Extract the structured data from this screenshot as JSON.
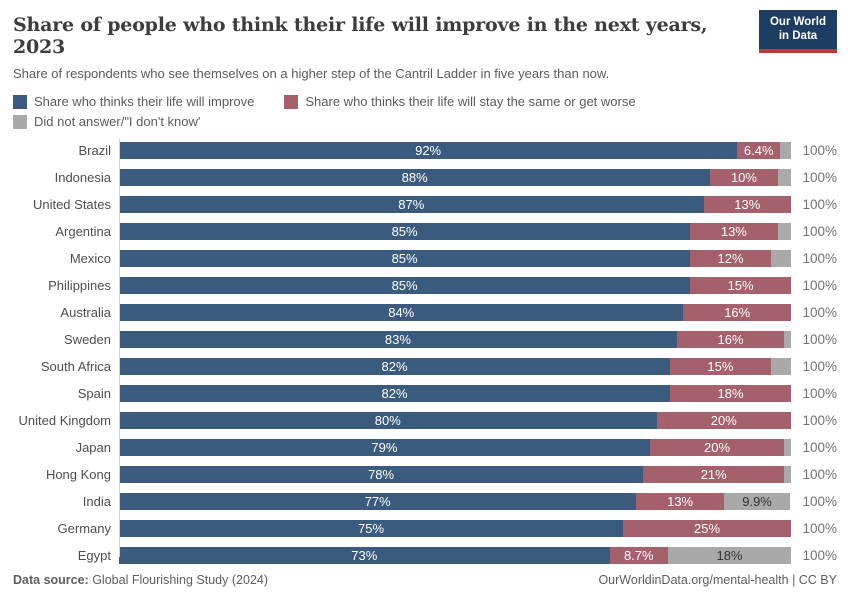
{
  "header": {
    "title": "Share of people who think their life will improve in the next years, 2023",
    "logo": {
      "line1": "Our World",
      "line2": "in Data"
    }
  },
  "subtitle": "Share of respondents who see themselves on a higher step of the Cantril Ladder in five years than now.",
  "legend": [
    {
      "key": "improve",
      "label": "Share who thinks their life will improve",
      "color": "#3b5b7e"
    },
    {
      "key": "worse",
      "label": "Share who thinks their life will stay the same or get worse",
      "color": "#a4606b"
    },
    {
      "key": "no_answer",
      "label": "Did not answer/\"I don't know'",
      "color": "#a9a9a9"
    }
  ],
  "chart_data": {
    "type": "bar",
    "stacked": true,
    "orientation": "horizontal",
    "unit": "%",
    "xlim": [
      0,
      100
    ],
    "total_label": "100%",
    "series": [
      "Share who thinks their life will improve",
      "Share who thinks their life will stay the same or get worse",
      "Did not answer/\"I don't know'"
    ],
    "rows": [
      {
        "country": "Brazil",
        "improve": 92,
        "improve_label": "92%",
        "worse": 6.4,
        "worse_label": "6.4%",
        "no_answer": 1.6,
        "no_answer_label": ""
      },
      {
        "country": "Indonesia",
        "improve": 88,
        "improve_label": "88%",
        "worse": 10,
        "worse_label": "10%",
        "no_answer": 2,
        "no_answer_label": ""
      },
      {
        "country": "United States",
        "improve": 87,
        "improve_label": "87%",
        "worse": 13,
        "worse_label": "13%",
        "no_answer": 0,
        "no_answer_label": ""
      },
      {
        "country": "Argentina",
        "improve": 85,
        "improve_label": "85%",
        "worse": 13,
        "worse_label": "13%",
        "no_answer": 2,
        "no_answer_label": ""
      },
      {
        "country": "Mexico",
        "improve": 85,
        "improve_label": "85%",
        "worse": 12,
        "worse_label": "12%",
        "no_answer": 3,
        "no_answer_label": ""
      },
      {
        "country": "Philippines",
        "improve": 85,
        "improve_label": "85%",
        "worse": 15,
        "worse_label": "15%",
        "no_answer": 0,
        "no_answer_label": ""
      },
      {
        "country": "Australia",
        "improve": 84,
        "improve_label": "84%",
        "worse": 16,
        "worse_label": "16%",
        "no_answer": 0,
        "no_answer_label": ""
      },
      {
        "country": "Sweden",
        "improve": 83,
        "improve_label": "83%",
        "worse": 16,
        "worse_label": "16%",
        "no_answer": 1,
        "no_answer_label": ""
      },
      {
        "country": "South Africa",
        "improve": 82,
        "improve_label": "82%",
        "worse": 15,
        "worse_label": "15%",
        "no_answer": 3,
        "no_answer_label": ""
      },
      {
        "country": "Spain",
        "improve": 82,
        "improve_label": "82%",
        "worse": 18,
        "worse_label": "18%",
        "no_answer": 0,
        "no_answer_label": ""
      },
      {
        "country": "United Kingdom",
        "improve": 80,
        "improve_label": "80%",
        "worse": 20,
        "worse_label": "20%",
        "no_answer": 0.5,
        "no_answer_label": ""
      },
      {
        "country": "Japan",
        "improve": 79,
        "improve_label": "79%",
        "worse": 20,
        "worse_label": "20%",
        "no_answer": 1,
        "no_answer_label": ""
      },
      {
        "country": "Hong Kong",
        "improve": 78,
        "improve_label": "78%",
        "worse": 21,
        "worse_label": "21%",
        "no_answer": 1,
        "no_answer_label": ""
      },
      {
        "country": "India",
        "improve": 77,
        "improve_label": "77%",
        "worse": 13,
        "worse_label": "13%",
        "no_answer": 9.9,
        "no_answer_label": "9.9%"
      },
      {
        "country": "Germany",
        "improve": 75,
        "improve_label": "75%",
        "worse": 25,
        "worse_label": "25%",
        "no_answer": 0,
        "no_answer_label": ""
      },
      {
        "country": "Egypt",
        "improve": 73,
        "improve_label": "73%",
        "worse": 8.7,
        "worse_label": "8.7%",
        "no_answer": 18.3,
        "no_answer_label": "18%"
      }
    ]
  },
  "footer": {
    "source_label": "Data source:",
    "source_value": " Global Flourishing Study (2024)",
    "credit": "OurWorldinData.org/mental-health | CC BY"
  }
}
